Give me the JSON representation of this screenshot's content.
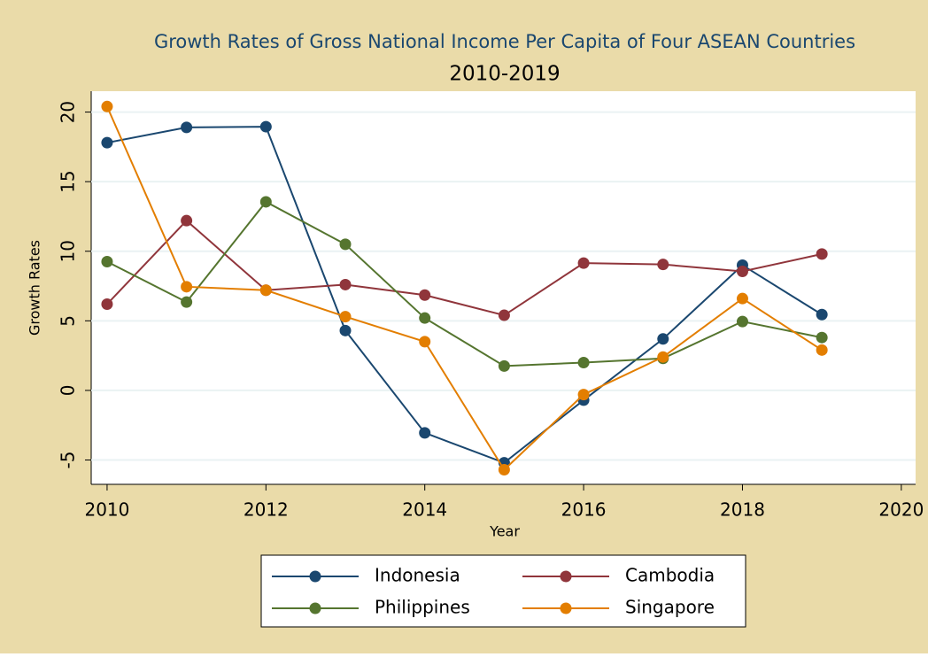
{
  "chart_data": {
    "type": "line",
    "title": "Growth Rates of Gross National Income Per Capita of Four ASEAN Countries",
    "subtitle": "2010-2019",
    "x_label": "Year",
    "y_label": "Growth Rates",
    "x": [
      2010,
      2011,
      2012,
      2013,
      2014,
      2015,
      2016,
      2017,
      2018,
      2019
    ],
    "series": [
      {
        "name": "Indonesia",
        "color": "#1a476f",
        "values": [
          17.8,
          18.9,
          18.95,
          4.3,
          -3.05,
          -5.2,
          -0.7,
          3.7,
          9.0,
          5.45
        ]
      },
      {
        "name": "Cambodia",
        "color": "#90353b",
        "values": [
          6.2,
          12.2,
          7.2,
          7.6,
          6.85,
          5.4,
          9.15,
          9.05,
          8.55,
          9.8
        ]
      },
      {
        "name": "Philippines",
        "color": "#55752f",
        "values": [
          9.25,
          6.35,
          13.55,
          10.5,
          5.2,
          1.75,
          2.0,
          2.3,
          4.95,
          3.8
        ]
      },
      {
        "name": "Singapore",
        "color": "#e37e00",
        "values": [
          20.4,
          7.45,
          7.2,
          5.3,
          3.5,
          -5.7,
          -0.3,
          2.4,
          6.6,
          2.9
        ]
      }
    ],
    "xlim": [
      2009.8,
      2020.18
    ],
    "xticks": [
      2010,
      2012,
      2014,
      2016,
      2018,
      2020
    ],
    "ylim": [
      -6.75,
      21.5
    ],
    "yticks": [
      -5,
      0,
      5,
      10,
      15,
      20
    ],
    "grid": true,
    "legend": "bottom"
  }
}
